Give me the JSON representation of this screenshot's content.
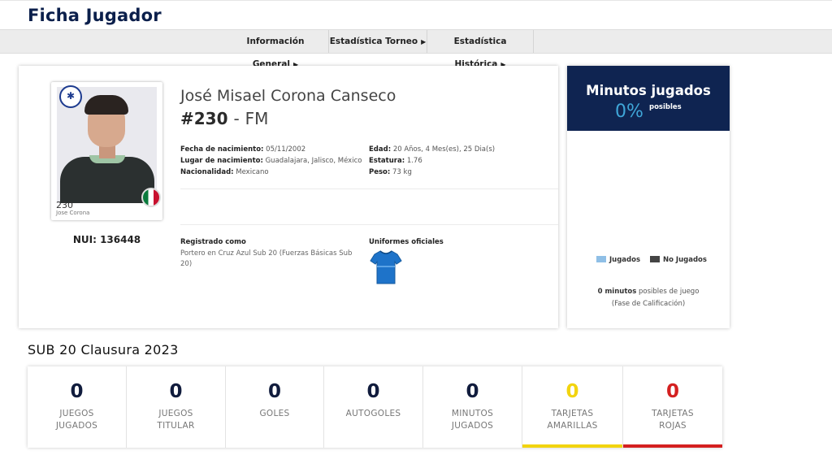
{
  "page": {
    "title": "Ficha Jugador"
  },
  "nav": {
    "items": [
      {
        "label": "Información General"
      },
      {
        "label": "Estadística Torneo"
      },
      {
        "label": "Estadística Histórica"
      }
    ]
  },
  "player": {
    "full_name": "José Misael Corona Canseco",
    "number": "#230",
    "separator": "-",
    "position": "FM",
    "photo_number": "230",
    "photo_name": "Jose Corona",
    "nui_label": "NUI:",
    "nui_value": "136448",
    "info_left": [
      {
        "label": "Fecha de nacimiento:",
        "value": "05/11/2002"
      },
      {
        "label": "Lugar de nacimiento:",
        "value": "Guadalajara, Jalisco, México"
      },
      {
        "label": "Nacionalidad:",
        "value": "Mexicano"
      }
    ],
    "info_right": [
      {
        "label": "Edad:",
        "value": "20 Años, 4 Mes(es), 25 Dia(s)"
      },
      {
        "label": "Estatura:",
        "value": "1.76"
      },
      {
        "label": "Peso:",
        "value": "73 kg"
      }
    ],
    "registered_label": "Registrado como",
    "registered_value": "Portero en Cruz Azul Sub 20 (Fuerzas Básicas Sub 20)",
    "uniforms_label": "Uniformes oficiales",
    "jersey_color": "#1e73c9"
  },
  "minutes": {
    "title": "Minutos jugados",
    "percent": "0%",
    "posibles": "posibles",
    "legend_played": "Jugados",
    "legend_not_played": "No Jugados",
    "played_color": "#8fbfe6",
    "not_played_color": "#444444",
    "foot_bold": "0 minutos",
    "foot_rest": "posibles de juego",
    "foot_phase": "(Fase de Calificación)",
    "header_color": "#0f2451",
    "percent_color": "#3fa6d8"
  },
  "season": {
    "title": "SUB 20 Clausura 2023",
    "stats": [
      {
        "value": "0",
        "line1": "JUEGOS",
        "line2": "JUGADOS"
      },
      {
        "value": "0",
        "line1": "JUEGOS",
        "line2": "TITULAR"
      },
      {
        "value": "0",
        "line1": "GOLES",
        "line2": ""
      },
      {
        "value": "0",
        "line1": "AUTOGOLES",
        "line2": ""
      },
      {
        "value": "0",
        "line1": "MINUTOS",
        "line2": "JUGADOS"
      },
      {
        "value": "0",
        "line1": "TARJETAS",
        "line2": "AMARILLAS",
        "accent": "#f2d40f"
      },
      {
        "value": "0",
        "line1": "TARJETAS",
        "line2": "ROJAS",
        "accent": "#d42020"
      }
    ]
  }
}
